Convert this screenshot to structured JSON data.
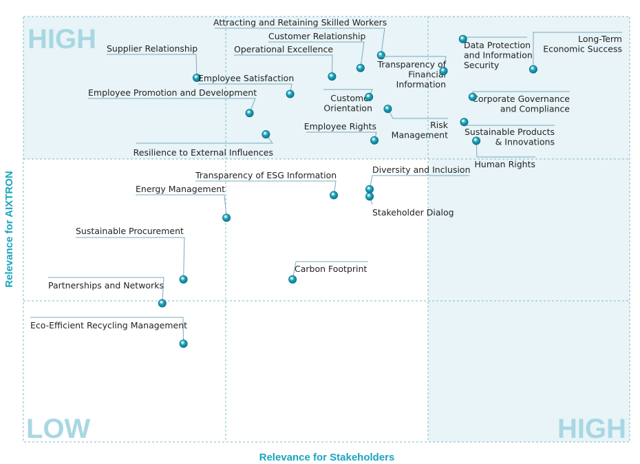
{
  "chart_data": {
    "type": "scatter",
    "xlabel": "Relevance for Stakeholders",
    "ylabel": "Relevance for AIXTRON",
    "corner_labels": {
      "top_left": "HIGH",
      "bottom_left": "LOW",
      "bottom_right": "HIGH"
    },
    "xlim": [
      0,
      100
    ],
    "ylim": [
      0,
      100
    ],
    "grid": "dashed 3x3",
    "colors": {
      "high_zone": "#e8f4f7",
      "grid": "#7fb7c7",
      "leader": "#79a9bd",
      "marker": "#1aa5be",
      "marker_edge": "#0e6f84",
      "corner_text": "#a8d7e2",
      "axis_text": "#1aa5be",
      "label_text": "#222222"
    },
    "points": [
      {
        "name": "Attracting and Retaining Skilled Workers",
        "lines": [
          "Attracting and Retaining Skilled Workers"
        ],
        "x": 59.0,
        "y": 90.9
      },
      {
        "name": "Customer Relationship",
        "lines": [
          "Customer Relationship"
        ],
        "x": 55.6,
        "y": 87.9
      },
      {
        "name": "Operational Excellence",
        "lines": [
          "Operational Excellence"
        ],
        "x": 50.9,
        "y": 85.9
      },
      {
        "name": "Supplier Relationship",
        "lines": [
          "Supplier Relationship"
        ],
        "x": 28.6,
        "y": 85.6
      },
      {
        "name": "Employee Satisfaction",
        "lines": [
          "Employee Satisfaction"
        ],
        "x": 44.0,
        "y": 81.8
      },
      {
        "name": "Employee Promotion and Development",
        "lines": [
          "Employee Promotion and Development"
        ],
        "x": 37.3,
        "y": 77.3
      },
      {
        "name": "Resilience to External Influences",
        "lines": [
          "Resilience to External Influences"
        ],
        "x": 40.0,
        "y": 72.3
      },
      {
        "name": "Customer Orientation",
        "lines": [
          "Customer",
          "Orientation"
        ],
        "x": 57.0,
        "y": 81.1
      },
      {
        "name": "Risk Management",
        "lines": [
          "Risk",
          "Management"
        ],
        "x": 60.1,
        "y": 78.3
      },
      {
        "name": "Employee Rights",
        "lines": [
          "Employee Rights"
        ],
        "x": 57.9,
        "y": 70.9
      },
      {
        "name": "Transparency of Financial Information",
        "lines": [
          "Transparency of",
          "Financial",
          "Information"
        ],
        "x": 69.3,
        "y": 87.2
      },
      {
        "name": "Data Protection and Information Security",
        "lines": [
          "Data Protection",
          "and Information",
          "Security"
        ],
        "x": 72.5,
        "y": 94.7
      },
      {
        "name": "Long-Term Economic Success",
        "lines": [
          "Long-Term",
          "Economic Success"
        ],
        "x": 84.1,
        "y": 87.6
      },
      {
        "name": "Corporate Governance and Compliance",
        "lines": [
          "Corporate Governance",
          "and Compliance"
        ],
        "x": 74.1,
        "y": 81.1
      },
      {
        "name": "Sustainable Products & Innovations",
        "lines": [
          "Sustainable Products",
          "& Innovations"
        ],
        "x": 72.7,
        "y": 75.2
      },
      {
        "name": "Human Rights",
        "lines": [
          "Human Rights"
        ],
        "x": 74.7,
        "y": 70.8
      },
      {
        "name": "Diversity and Inclusion",
        "lines": [
          "Diversity and Inclusion"
        ],
        "x": 57.1,
        "y": 59.4
      },
      {
        "name": "Stakeholder Dialog",
        "lines": [
          "Stakeholder Dialog"
        ],
        "x": 57.1,
        "y": 57.7
      },
      {
        "name": "Transparency of ESG Information",
        "lines": [
          "Transparency of ESG Information"
        ],
        "x": 51.2,
        "y": 58.0
      },
      {
        "name": "Energy Management",
        "lines": [
          "Energy Management"
        ],
        "x": 33.5,
        "y": 52.7
      },
      {
        "name": "Sustainable Procurement",
        "lines": [
          "Sustainable Procurement"
        ],
        "x": 26.4,
        "y": 38.2
      },
      {
        "name": "Partnerships and Networks",
        "lines": [
          "Partnerships and Networks"
        ],
        "x": 22.9,
        "y": 32.6
      },
      {
        "name": "Carbon Footprint",
        "lines": [
          "Carbon Footprint"
        ],
        "x": 44.4,
        "y": 38.2
      },
      {
        "name": "Eco-Efficient Recycling Management",
        "lines": [
          "Eco-Efficient Recycling Management"
        ],
        "x": 26.4,
        "y": 23.1
      }
    ]
  }
}
